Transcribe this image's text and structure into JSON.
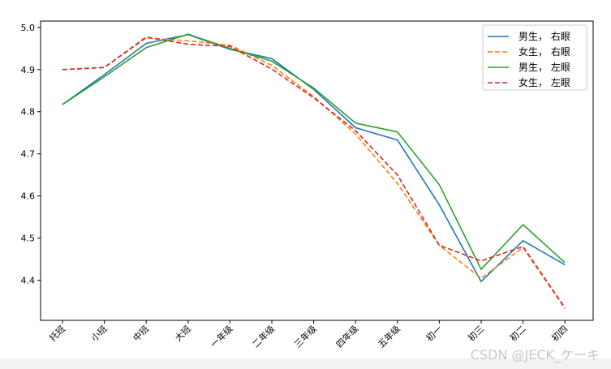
{
  "chart_data": {
    "type": "line",
    "title": "",
    "xlabel": "",
    "ylabel": "",
    "categories": [
      "托班",
      "小班",
      "中班",
      "大班",
      "一年级",
      "二年级",
      "三年级",
      "四年级",
      "五年级",
      "初一",
      "初三",
      "初二",
      "初四"
    ],
    "ylim": [
      4.305,
      5.015
    ],
    "yticks": [
      4.4,
      4.5,
      4.6,
      4.7,
      4.8,
      4.9,
      5.0
    ],
    "ytick_labels": [
      "4.4",
      "4.5",
      "4.6",
      "4.7",
      "4.8",
      "4.9",
      "5.0"
    ],
    "legend_position": "top-right",
    "series": [
      {
        "name": "男生， 右眼",
        "color": "#1f77b4",
        "style": "solid",
        "values": [
          4.817,
          4.888,
          4.962,
          4.983,
          4.948,
          4.926,
          4.853,
          4.762,
          4.733,
          4.579,
          4.397,
          4.494,
          4.437
        ]
      },
      {
        "name": "女生， 右眼",
        "color": "#ff7f0e",
        "style": "dashed",
        "values": [
          4.9,
          4.905,
          4.975,
          4.968,
          4.958,
          4.91,
          4.836,
          4.747,
          4.63,
          4.483,
          4.405,
          4.478,
          4.333
        ]
      },
      {
        "name": "男生， 左眼",
        "color": "#2ca02c",
        "style": "solid",
        "values": [
          4.817,
          4.883,
          4.952,
          4.984,
          4.95,
          4.92,
          4.856,
          4.773,
          4.752,
          4.627,
          4.426,
          4.532,
          4.442
        ]
      },
      {
        "name": "女生， 左眼",
        "color": "#d62728",
        "style": "dashed",
        "values": [
          4.9,
          4.905,
          4.977,
          4.96,
          4.955,
          4.901,
          4.833,
          4.755,
          4.65,
          4.483,
          4.446,
          4.48,
          4.335
        ]
      }
    ]
  },
  "watermark": "CSDN @JECK_ケーキ"
}
